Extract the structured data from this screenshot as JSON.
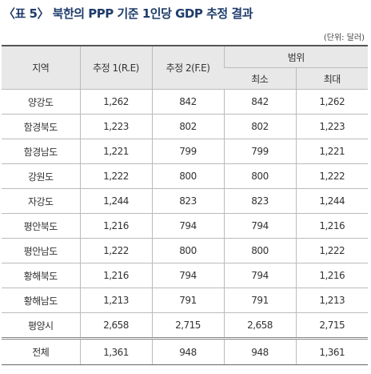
{
  "title": "〈표 5〉 북한의 PPP 기준 1인당 GDP 추정 결과",
  "unit": "(단위: 달러)",
  "table": {
    "header": {
      "region": "지역",
      "est1": "추정 1(R.E)",
      "est2": "추정 2(F.E)",
      "range": "범위",
      "min": "최소",
      "max": "최대"
    },
    "rows": [
      [
        "양강도",
        "1,262",
        "842",
        "842",
        "1,262"
      ],
      [
        "함경북도",
        "1,223",
        "802",
        "802",
        "1,223"
      ],
      [
        "함경남도",
        "1,221",
        "799",
        "799",
        "1,221"
      ],
      [
        "강원도",
        "1,222",
        "800",
        "800",
        "1,222"
      ],
      [
        "자강도",
        "1,244",
        "823",
        "823",
        "1,244"
      ],
      [
        "평안북도",
        "1,216",
        "794",
        "794",
        "1,216"
      ],
      [
        "평안남도",
        "1,222",
        "800",
        "800",
        "1,222"
      ],
      [
        "황해북도",
        "1,216",
        "794",
        "794",
        "1,216"
      ],
      [
        "황해남도",
        "1,213",
        "791",
        "791",
        "1,213"
      ],
      [
        "평양시",
        "2,658",
        "2,715",
        "2,658",
        "2,715"
      ]
    ],
    "total": [
      "전체",
      "1,361",
      "948",
      "948",
      "1,361"
    ]
  }
}
